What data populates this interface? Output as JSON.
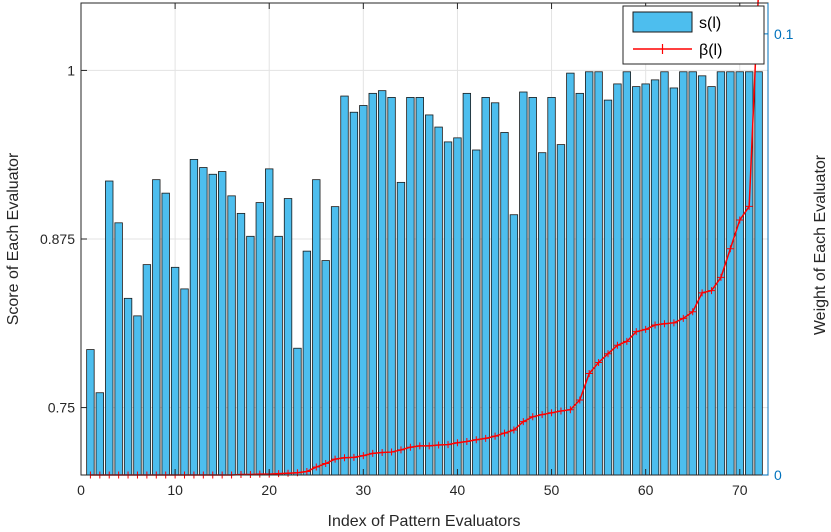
{
  "chart_data": {
    "type": "bar",
    "xlabel": "Index of Pattern Evaluators",
    "ylabel": "Score of Each Evaluator",
    "ylabel_right": "Weight of Each Evaluator",
    "xlim": [
      0,
      73
    ],
    "ylim": [
      0.7,
      1.05
    ],
    "ylim_right": [
      0,
      0.107
    ],
    "x_ticks": [
      0,
      10,
      20,
      30,
      40,
      50,
      60,
      70
    ],
    "x_tick_labels": [
      "0",
      "10",
      "20",
      "30",
      "40",
      "50",
      "60",
      "70"
    ],
    "y_ticks": [
      0.75,
      0.875,
      1
    ],
    "y_tick_labels": [
      "0.75",
      "0.875",
      "1"
    ],
    "y_ticks_right": [
      0,
      0.1
    ],
    "y_tick_labels_right": [
      "0",
      "0.1"
    ],
    "grid": true,
    "legend_position": "top-right",
    "colors": {
      "bar_fill": "#4dbeee",
      "bar_edge": "#1a1a1a",
      "line": "#ff0000",
      "right_axis": "#0072bd"
    },
    "series": [
      {
        "name": "s(l)",
        "kind": "bar",
        "x": [
          1,
          2,
          3,
          4,
          5,
          6,
          7,
          8,
          9,
          10,
          11,
          12,
          13,
          14,
          15,
          16,
          17,
          18,
          19,
          20,
          21,
          22,
          23,
          24,
          25,
          26,
          27,
          28,
          29,
          30,
          31,
          32,
          33,
          34,
          35,
          36,
          37,
          38,
          39,
          40,
          41,
          42,
          43,
          44,
          45,
          46,
          47,
          48,
          49,
          50,
          51,
          52,
          53,
          54,
          55,
          56,
          57,
          58,
          59,
          60,
          61,
          62,
          63,
          64,
          65,
          66,
          67,
          68,
          69,
          70,
          71,
          72
        ],
        "values": [
          0.793,
          0.761,
          0.918,
          0.887,
          0.831,
          0.818,
          0.856,
          0.919,
          0.909,
          0.854,
          0.838,
          0.934,
          0.928,
          0.923,
          0.925,
          0.907,
          0.894,
          0.877,
          0.902,
          0.927,
          0.877,
          0.905,
          0.794,
          0.866,
          0.919,
          0.859,
          0.899,
          0.981,
          0.969,
          0.974,
          0.983,
          0.985,
          0.98,
          0.917,
          0.98,
          0.98,
          0.967,
          0.958,
          0.947,
          0.95,
          0.983,
          0.941,
          0.98,
          0.976,
          0.954,
          0.893,
          0.984,
          0.98,
          0.939,
          0.98,
          0.945,
          0.998,
          0.983,
          0.999,
          0.999,
          0.978,
          0.99,
          0.999,
          0.988,
          0.99,
          0.993,
          0.999,
          0.987,
          0.999,
          0.999,
          0.996,
          0.988,
          0.999,
          0.999,
          0.999,
          0.999,
          0.999
        ]
      },
      {
        "name": "β(l)",
        "kind": "line",
        "axis": "right",
        "x": [
          1,
          2,
          3,
          4,
          5,
          6,
          7,
          8,
          9,
          10,
          11,
          12,
          13,
          14,
          15,
          16,
          17,
          18,
          19,
          20,
          21,
          22,
          23,
          24,
          25,
          26,
          27,
          28,
          29,
          30,
          31,
          32,
          33,
          34,
          35,
          36,
          37,
          38,
          39,
          40,
          41,
          42,
          43,
          44,
          45,
          46,
          47,
          48,
          49,
          50,
          51,
          52,
          53,
          54,
          55,
          56,
          57,
          58,
          59,
          60,
          61,
          62,
          63,
          64,
          65,
          66,
          67,
          68,
          69,
          70,
          71,
          72
        ],
        "values": [
          0.0,
          0.0,
          0.0,
          0.0,
          0.0,
          0.0,
          0.0,
          0.0,
          0.0,
          0.0,
          0.0,
          0.0,
          0.0,
          0.0,
          0.0,
          0.0,
          0.0001,
          0.0001,
          0.0002,
          0.0002,
          0.0003,
          0.0004,
          0.0005,
          0.0008,
          0.0018,
          0.0026,
          0.0036,
          0.0039,
          0.004,
          0.0044,
          0.0049,
          0.0051,
          0.0052,
          0.0057,
          0.0063,
          0.0066,
          0.0066,
          0.0068,
          0.0069,
          0.0073,
          0.0076,
          0.008,
          0.0083,
          0.0088,
          0.0095,
          0.0102,
          0.0121,
          0.0132,
          0.0137,
          0.0141,
          0.0145,
          0.0148,
          0.017,
          0.023,
          0.0255,
          0.0275,
          0.0294,
          0.0303,
          0.0325,
          0.033,
          0.034,
          0.0343,
          0.0345,
          0.0355,
          0.037,
          0.0413,
          0.0418,
          0.0448,
          0.0513,
          0.0578,
          0.0609,
          0.11
        ]
      }
    ]
  }
}
